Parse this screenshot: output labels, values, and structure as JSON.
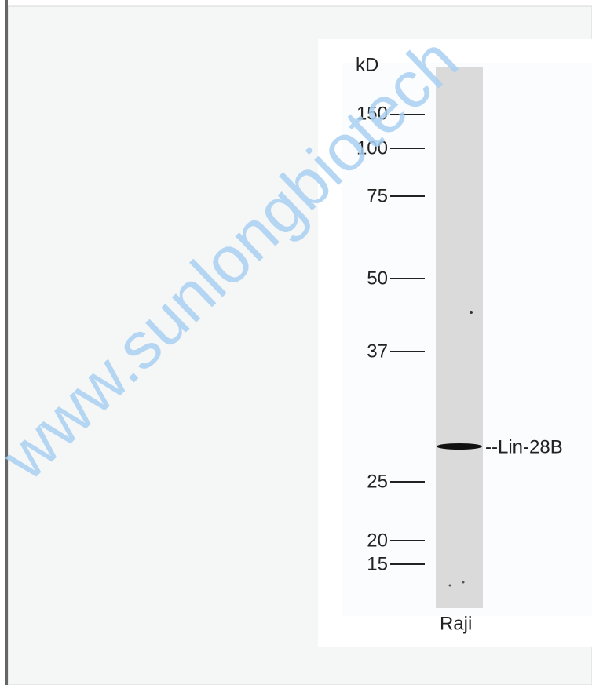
{
  "blot": {
    "unit_label": "kD",
    "markers": [
      "150",
      "100",
      "75",
      "50",
      "37",
      "25",
      "20",
      "15"
    ],
    "band_label": "--Lin-28B",
    "lane_label": "Raji",
    "watermark": "www.sunlongbiotech"
  }
}
